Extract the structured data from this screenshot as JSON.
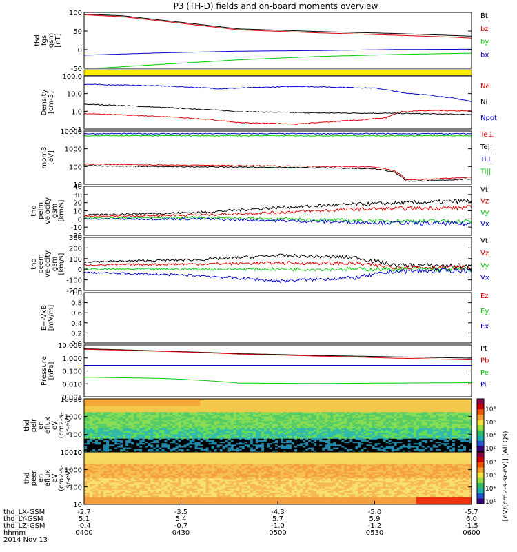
{
  "title": "P3 (TH-D) fields and on-board moments overview",
  "colors": {
    "black": "#000000",
    "red": "#dd0000",
    "green": "#00cc00",
    "blue": "#0000cc",
    "yellow": "#ffee00"
  },
  "time_axis": {
    "ticks": [
      "0400",
      "0430",
      "0500",
      "0530",
      "0600"
    ],
    "rows": [
      {
        "label": "thd_LX-GSM",
        "values": [
          "-2.7",
          "-3.5",
          "-4.3",
          "-5.0",
          "-5.7"
        ]
      },
      {
        "label": "thd_LY-GSM",
        "values": [
          "5.1",
          "5.4",
          "5.7",
          "5.9",
          "6.0"
        ]
      },
      {
        "label": "thd_LZ-GSM",
        "values": [
          "-0.4",
          "-0.7",
          "-1.0",
          "-1.2",
          "-1.5"
        ]
      },
      {
        "label": "hhmm",
        "values": [
          "0400",
          "0430",
          "0500",
          "0530",
          "0600"
        ]
      }
    ],
    "date": "2014 Nov 13"
  },
  "colorbar_label": "[eV/(cm2-s-sr-eV)] (All Qs)",
  "chart_data": [
    {
      "type": "line",
      "panel": "fgs",
      "ylabel_lines": [
        "thd",
        "fgs",
        "gsm",
        "[nT]"
      ],
      "ylim": [
        -60,
        110
      ],
      "yticks": [
        "100",
        "50",
        "0",
        "-50"
      ],
      "x": [
        0,
        1
      ],
      "series": [
        {
          "name": "Bt",
          "color": "black",
          "points": [
            [
              0,
              105
            ],
            [
              0.1,
              100
            ],
            [
              0.25,
              80
            ],
            [
              0.4,
              60
            ],
            [
              0.6,
              52
            ],
            [
              0.8,
              46
            ],
            [
              0.95,
              40
            ],
            [
              1,
              38
            ]
          ]
        },
        {
          "name": "bz",
          "color": "red",
          "points": [
            [
              0,
              103
            ],
            [
              0.1,
              97
            ],
            [
              0.25,
              77
            ],
            [
              0.4,
              57
            ],
            [
              0.6,
              48
            ],
            [
              0.8,
              41
            ],
            [
              0.95,
              35
            ],
            [
              1,
              32
            ]
          ]
        },
        {
          "name": "by",
          "color": "green",
          "points": [
            [
              0,
              -62
            ],
            [
              0.2,
              -48
            ],
            [
              0.4,
              -34
            ],
            [
              0.6,
              -24
            ],
            [
              0.8,
              -18
            ],
            [
              1,
              -14
            ]
          ]
        },
        {
          "name": "bx",
          "color": "blue",
          "points": [
            [
              0,
              -20
            ],
            [
              0.2,
              -13
            ],
            [
              0.4,
              -8
            ],
            [
              0.6,
              -6
            ],
            [
              0.8,
              -3
            ],
            [
              1,
              -2
            ]
          ]
        }
      ]
    },
    {
      "type": "line",
      "panel": "density",
      "ylabel_lines": [
        "Density",
        "[cm-3]"
      ],
      "log": true,
      "ylim": [
        0.1,
        200
      ],
      "yticks": [
        "100.0",
        "10.0",
        "1.0",
        "0.1"
      ],
      "series": [
        {
          "name": "Ne",
          "color": "red",
          "points": [
            [
              0,
              0.9
            ],
            [
              0.2,
              0.6
            ],
            [
              0.4,
              0.25
            ],
            [
              0.55,
              0.2
            ],
            [
              0.7,
              0.35
            ],
            [
              0.78,
              0.5
            ],
            [
              0.82,
              1.2
            ],
            [
              0.9,
              1.4
            ],
            [
              1,
              1.3
            ]
          ]
        },
        {
          "name": "Ni",
          "color": "black",
          "points": [
            [
              0,
              3.5
            ],
            [
              0.2,
              2.2
            ],
            [
              0.4,
              1.2
            ],
            [
              0.6,
              1.0
            ],
            [
              0.8,
              0.95
            ],
            [
              1,
              0.8
            ]
          ]
        },
        {
          "name": "Npot",
          "color": "blue",
          "points": [
            [
              0,
              60
            ],
            [
              0.2,
              48
            ],
            [
              0.35,
              32
            ],
            [
              0.55,
              45
            ],
            [
              0.75,
              35
            ],
            [
              0.82,
              18
            ],
            [
              0.9,
              12
            ],
            [
              1,
              5
            ]
          ]
        }
      ]
    },
    {
      "type": "line",
      "panel": "temperature",
      "ylabel_lines": [
        "mom3",
        "[eV]"
      ],
      "log": true,
      "ylim": [
        10,
        12000
      ],
      "yticks": [
        "10000",
        "1000",
        "100",
        "10"
      ],
      "series": [
        {
          "name": "Te⊥",
          "color": "red",
          "points": [
            [
              0,
              150
            ],
            [
              0.2,
              130
            ],
            [
              0.4,
              120
            ],
            [
              0.6,
              110
            ],
            [
              0.75,
              100
            ],
            [
              0.8,
              60
            ],
            [
              0.83,
              18
            ],
            [
              0.9,
              20
            ],
            [
              1,
              25
            ]
          ]
        },
        {
          "name": "Te||",
          "color": "black",
          "points": [
            [
              0,
              120
            ],
            [
              0.2,
              105
            ],
            [
              0.4,
              100
            ],
            [
              0.6,
              90
            ],
            [
              0.75,
              80
            ],
            [
              0.8,
              50
            ],
            [
              0.83,
              15
            ],
            [
              0.9,
              16
            ],
            [
              1,
              20
            ]
          ]
        },
        {
          "name": "Ti⊥",
          "color": "blue",
          "points": [
            [
              0,
              8500
            ],
            [
              1,
              8500
            ]
          ]
        },
        {
          "name": "Ti||",
          "color": "green",
          "points": [
            [
              0,
              6500
            ],
            [
              1,
              6500
            ]
          ]
        }
      ]
    },
    {
      "type": "line",
      "panel": "velocity-dsl",
      "ylabel_lines": [
        "thd",
        "peim",
        "velocity",
        "gsm",
        "[km/s]"
      ],
      "ylim": [
        -20,
        40
      ],
      "yticks": [
        "40",
        "30",
        "20",
        "10",
        "0",
        "-10",
        "-20"
      ],
      "series": [
        {
          "name": "Vt",
          "color": "black",
          "points": [
            [
              0,
              5
            ],
            [
              0.3,
              8
            ],
            [
              0.5,
              14
            ],
            [
              0.7,
              18
            ],
            [
              1,
              22
            ]
          ]
        },
        {
          "name": "Vz",
          "color": "red",
          "points": [
            [
              0,
              3
            ],
            [
              0.3,
              5
            ],
            [
              0.5,
              8
            ],
            [
              0.7,
              12
            ],
            [
              1,
              14
            ]
          ]
        },
        {
          "name": "Vy",
          "color": "green",
          "points": [
            [
              0,
              1
            ],
            [
              0.3,
              2
            ],
            [
              0.5,
              0
            ],
            [
              0.7,
              -2
            ],
            [
              1,
              -3
            ]
          ]
        },
        {
          "name": "Vx",
          "color": "blue",
          "points": [
            [
              0,
              0
            ],
            [
              0.3,
              0
            ],
            [
              0.5,
              -2
            ],
            [
              0.7,
              -4
            ],
            [
              1,
              -6
            ]
          ]
        }
      ]
    },
    {
      "type": "line",
      "panel": "velocity-gsm",
      "ylabel_lines": [
        "thd",
        "peem",
        "velocity",
        "gsm",
        "[km/s]"
      ],
      "ylim": [
        -200,
        300
      ],
      "yticks": [
        "300",
        "200",
        "100",
        "0",
        "-100",
        "-200"
      ],
      "series": [
        {
          "name": "Vt",
          "color": "black",
          "points": [
            [
              0,
              70
            ],
            [
              0.3,
              90
            ],
            [
              0.5,
              130
            ],
            [
              0.7,
              110
            ],
            [
              0.8,
              40
            ],
            [
              1,
              30
            ]
          ]
        },
        {
          "name": "Vz",
          "color": "red",
          "points": [
            [
              0,
              40
            ],
            [
              0.3,
              50
            ],
            [
              0.5,
              60
            ],
            [
              0.7,
              55
            ],
            [
              0.8,
              20
            ],
            [
              1,
              15
            ]
          ]
        },
        {
          "name": "Vy",
          "color": "green",
          "points": [
            [
              0,
              0
            ],
            [
              0.3,
              0
            ],
            [
              0.5,
              0
            ],
            [
              0.7,
              0
            ],
            [
              1,
              0
            ]
          ]
        },
        {
          "name": "Vx",
          "color": "blue",
          "points": [
            [
              0,
              -30
            ],
            [
              0.3,
              -60
            ],
            [
              0.5,
              -110
            ],
            [
              0.7,
              -80
            ],
            [
              0.8,
              -20
            ],
            [
              1,
              -10
            ]
          ]
        }
      ]
    },
    {
      "type": "line",
      "panel": "efield",
      "ylabel_lines": [
        "E=-VxB",
        "[mV/m]"
      ],
      "ylim": [
        0,
        1
      ],
      "yticks": [
        "1.0",
        "0.8",
        "0.6",
        "0.4",
        "0.2",
        "0.0"
      ],
      "series": [
        {
          "name": "Ez",
          "color": "red",
          "points": []
        },
        {
          "name": "Ey",
          "color": "green",
          "points": []
        },
        {
          "name": "Ex",
          "color": "blue",
          "points": []
        }
      ]
    },
    {
      "type": "line",
      "panel": "pressure",
      "ylabel_lines": [
        "Pressure",
        "[nPa]"
      ],
      "log": true,
      "ylim": [
        0.001,
        12
      ],
      "yticks": [
        "10.000",
        "1.000",
        "0.100",
        "0.010",
        "0.001"
      ],
      "series": [
        {
          "name": "Pt",
          "color": "black",
          "points": [
            [
              0,
              6
            ],
            [
              0.2,
              4
            ],
            [
              0.4,
              2.5
            ],
            [
              0.6,
              1.8
            ],
            [
              0.8,
              1.4
            ],
            [
              1,
              1.1
            ]
          ]
        },
        {
          "name": "Pb",
          "color": "red",
          "points": [
            [
              0,
              5.5
            ],
            [
              0.2,
              3.8
            ],
            [
              0.4,
              2.3
            ],
            [
              0.6,
              1.6
            ],
            [
              0.8,
              1.1
            ],
            [
              1,
              0.8
            ]
          ]
        },
        {
          "name": "Pe",
          "color": "green",
          "points": [
            [
              0,
              0.035
            ],
            [
              0.2,
              0.028
            ],
            [
              0.4,
              0.012
            ],
            [
              0.6,
              0.011
            ],
            [
              0.8,
              0.012
            ],
            [
              1,
              0.013
            ]
          ]
        },
        {
          "name": "Pi",
          "color": "blue",
          "points": [
            [
              0,
              0.3
            ],
            [
              1,
              0.3
            ]
          ]
        }
      ]
    },
    {
      "type": "heatmap",
      "panel": "ion-spectrogram",
      "ylabel_lines": [
        "thd",
        "peir",
        "en",
        "eflux",
        "eV",
        "(cm2-s-",
        "sr-eV)"
      ],
      "yticks": [
        "10000",
        "1000",
        "100",
        "10"
      ]
    },
    {
      "type": "heatmap",
      "panel": "electron-spectrogram",
      "ylabel_lines": [
        "thd",
        "peer",
        "en",
        "eflux",
        "eV",
        "(cm2-s-",
        "sr-eV)"
      ],
      "yticks": [
        "10000",
        "1000",
        "100",
        "10"
      ]
    }
  ],
  "colorbar_ticks": [
    "10⁸",
    "10⁶",
    "10⁴",
    "10²"
  ]
}
